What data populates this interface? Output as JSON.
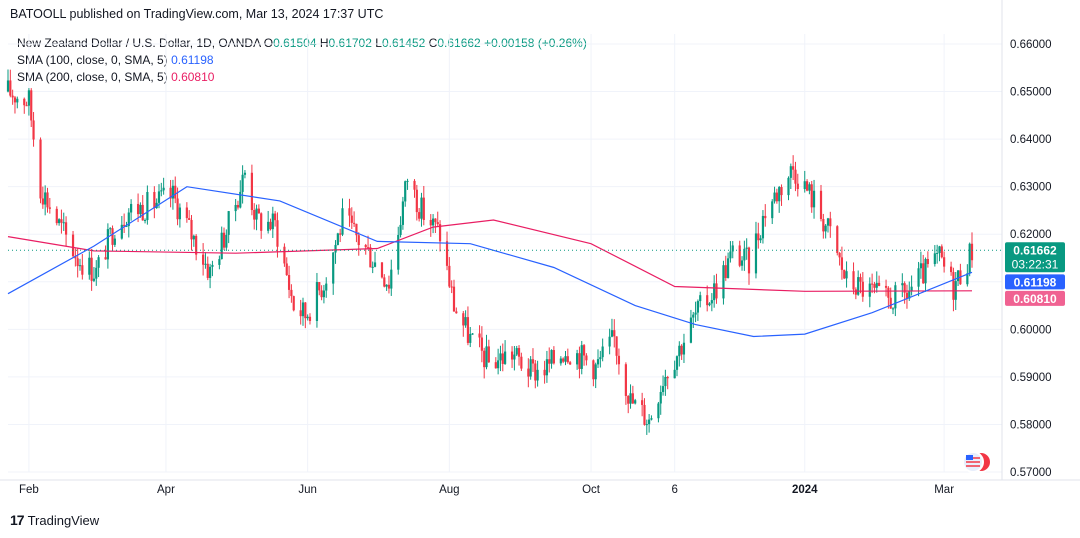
{
  "header": {
    "publisher_line": "BATOOLL published on TradingView.com, Mar 13, 2024 17:37 UTC"
  },
  "legend": {
    "symbol": "New Zealand Dollar / U.S. Dollar, 1D, OANDA",
    "o_label": "O",
    "o": "0.61504",
    "h_label": "H",
    "h": "0.61702",
    "l_label": "L",
    "l": "0.61452",
    "c_label": "C",
    "c": "0.61662",
    "change": "+0.00158 (+0.26%)",
    "sma100_label": "SMA (100, close, 0, SMA, 5)",
    "sma100_value": "0.61198",
    "sma200_label": "SMA (200, close, 0, SMA, 5)",
    "sma200_value": "0.60810"
  },
  "badges": {
    "price": "0.61662",
    "countdown": "03:22:31",
    "sma100": "0.61198",
    "sma200": "0.60810"
  },
  "footer": {
    "brand": "TradingView",
    "logo_text": "17"
  },
  "colors": {
    "up": "#089981",
    "down": "#f23645",
    "sma100": "#2962ff",
    "sma200": "#e91e63"
  },
  "chart_data": {
    "type": "candlestick",
    "yticks": [
      "0.66000",
      "0.65000",
      "0.64000",
      "0.63000",
      "0.62000",
      "0.61000",
      "0.60000",
      "0.59000",
      "0.58000",
      "0.57000"
    ],
    "ylim": [
      0.57,
      0.66
    ],
    "xtick_labels": [
      "Feb",
      "Apr",
      "Jun",
      "Aug",
      "Oct",
      "6",
      "2024",
      "Mar"
    ],
    "xtick_dates": [
      "2023-02-01",
      "2023-04-01",
      "2023-06-01",
      "2023-08-01",
      "2023-10-01",
      "2023-11-06",
      "2024-01-01",
      "2024-03-01"
    ],
    "x_range": [
      "2023-01-23",
      "2024-03-13"
    ],
    "close_series": {
      "dates": [
        "2023-01-23",
        "2023-02-01",
        "2023-02-06",
        "2023-02-14",
        "2023-02-22",
        "2023-03-02",
        "2023-03-10",
        "2023-03-16",
        "2023-03-24",
        "2023-04-04",
        "2023-04-12",
        "2023-04-20",
        "2023-04-28",
        "2023-05-05",
        "2023-05-10",
        "2023-05-18",
        "2023-05-26",
        "2023-05-31",
        "2023-06-08",
        "2023-06-16",
        "2023-06-26",
        "2023-07-06",
        "2023-07-14",
        "2023-07-20",
        "2023-07-28",
        "2023-08-03",
        "2023-08-10",
        "2023-08-18",
        "2023-08-28",
        "2023-09-05",
        "2023-09-12",
        "2023-09-20",
        "2023-09-28",
        "2023-10-03",
        "2023-10-11",
        "2023-10-18",
        "2023-10-26",
        "2023-11-01",
        "2023-11-08",
        "2023-11-15",
        "2023-11-24",
        "2023-12-01",
        "2023-12-08",
        "2023-12-15",
        "2023-12-27",
        "2024-01-05",
        "2024-01-12",
        "2024-01-19",
        "2024-01-29",
        "2024-02-05",
        "2024-02-13",
        "2024-02-20",
        "2024-02-28",
        "2024-03-05",
        "2024-03-13"
      ],
      "values": [
        0.65,
        0.648,
        0.63,
        0.622,
        0.615,
        0.612,
        0.622,
        0.625,
        0.626,
        0.628,
        0.62,
        0.612,
        0.622,
        0.633,
        0.623,
        0.622,
        0.605,
        0.603,
        0.61,
        0.623,
        0.617,
        0.61,
        0.632,
        0.625,
        0.62,
        0.605,
        0.598,
        0.593,
        0.595,
        0.591,
        0.592,
        0.596,
        0.594,
        0.592,
        0.598,
        0.585,
        0.581,
        0.59,
        0.596,
        0.603,
        0.609,
        0.616,
        0.614,
        0.625,
        0.634,
        0.627,
        0.62,
        0.61,
        0.608,
        0.606,
        0.607,
        0.611,
        0.615,
        0.609,
        0.6166
      ]
    },
    "sma100_series": {
      "dates": [
        "2023-01-23",
        "2023-03-01",
        "2023-04-10",
        "2023-05-20",
        "2023-07-01",
        "2023-08-10",
        "2023-09-15",
        "2023-10-20",
        "2023-11-15",
        "2023-12-10",
        "2024-01-01",
        "2024-01-30",
        "2024-03-13"
      ],
      "values": [
        0.6075,
        0.6175,
        0.63,
        0.627,
        0.6185,
        0.618,
        0.613,
        0.605,
        0.601,
        0.5985,
        0.599,
        0.6035,
        0.612
      ]
    },
    "sma200_series": {
      "dates": [
        "2023-01-23",
        "2023-03-01",
        "2023-05-01",
        "2023-07-01",
        "2023-07-25",
        "2023-08-20",
        "2023-10-01",
        "2023-11-06",
        "2024-01-01",
        "2024-03-13"
      ],
      "values": [
        0.6195,
        0.6165,
        0.616,
        0.617,
        0.6215,
        0.623,
        0.618,
        0.609,
        0.608,
        0.6081
      ]
    }
  }
}
